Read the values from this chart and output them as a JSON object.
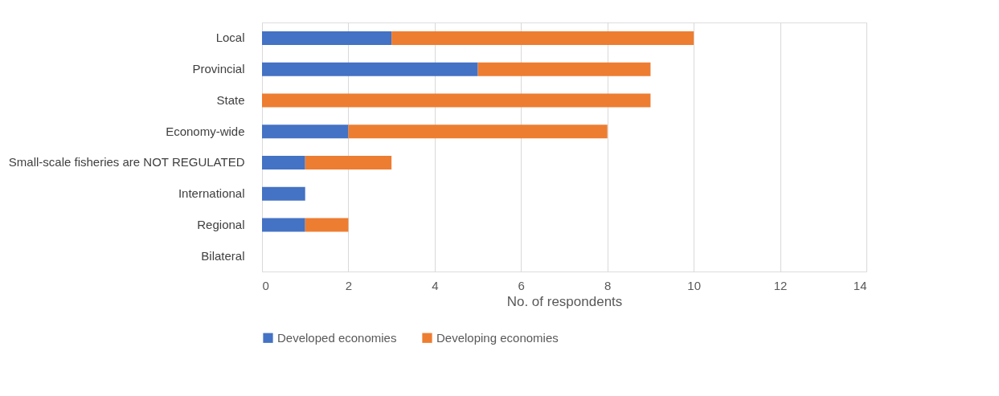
{
  "chart_data": {
    "type": "bar",
    "orientation": "horizontal",
    "stacked": true,
    "categories": [
      "Local",
      "Provincial",
      "State",
      "Economy-wide",
      "Small-scale fisheries are NOT REGULATED",
      "International",
      "Regional",
      "Bilateral"
    ],
    "series": [
      {
        "name": "Developed economies",
        "color": "#4472c4",
        "values": [
          3,
          5,
          0,
          2,
          1,
          1,
          1,
          0
        ]
      },
      {
        "name": "Developing economies",
        "color": "#ed7d31",
        "values": [
          7,
          4,
          9,
          6,
          2,
          0,
          1,
          0
        ]
      }
    ],
    "xlabel": "No. of respondents",
    "xlim": [
      0,
      14
    ],
    "xticks": [
      0,
      2,
      4,
      6,
      8,
      10,
      12,
      14
    ],
    "grid": "x",
    "legend": "bottom"
  }
}
